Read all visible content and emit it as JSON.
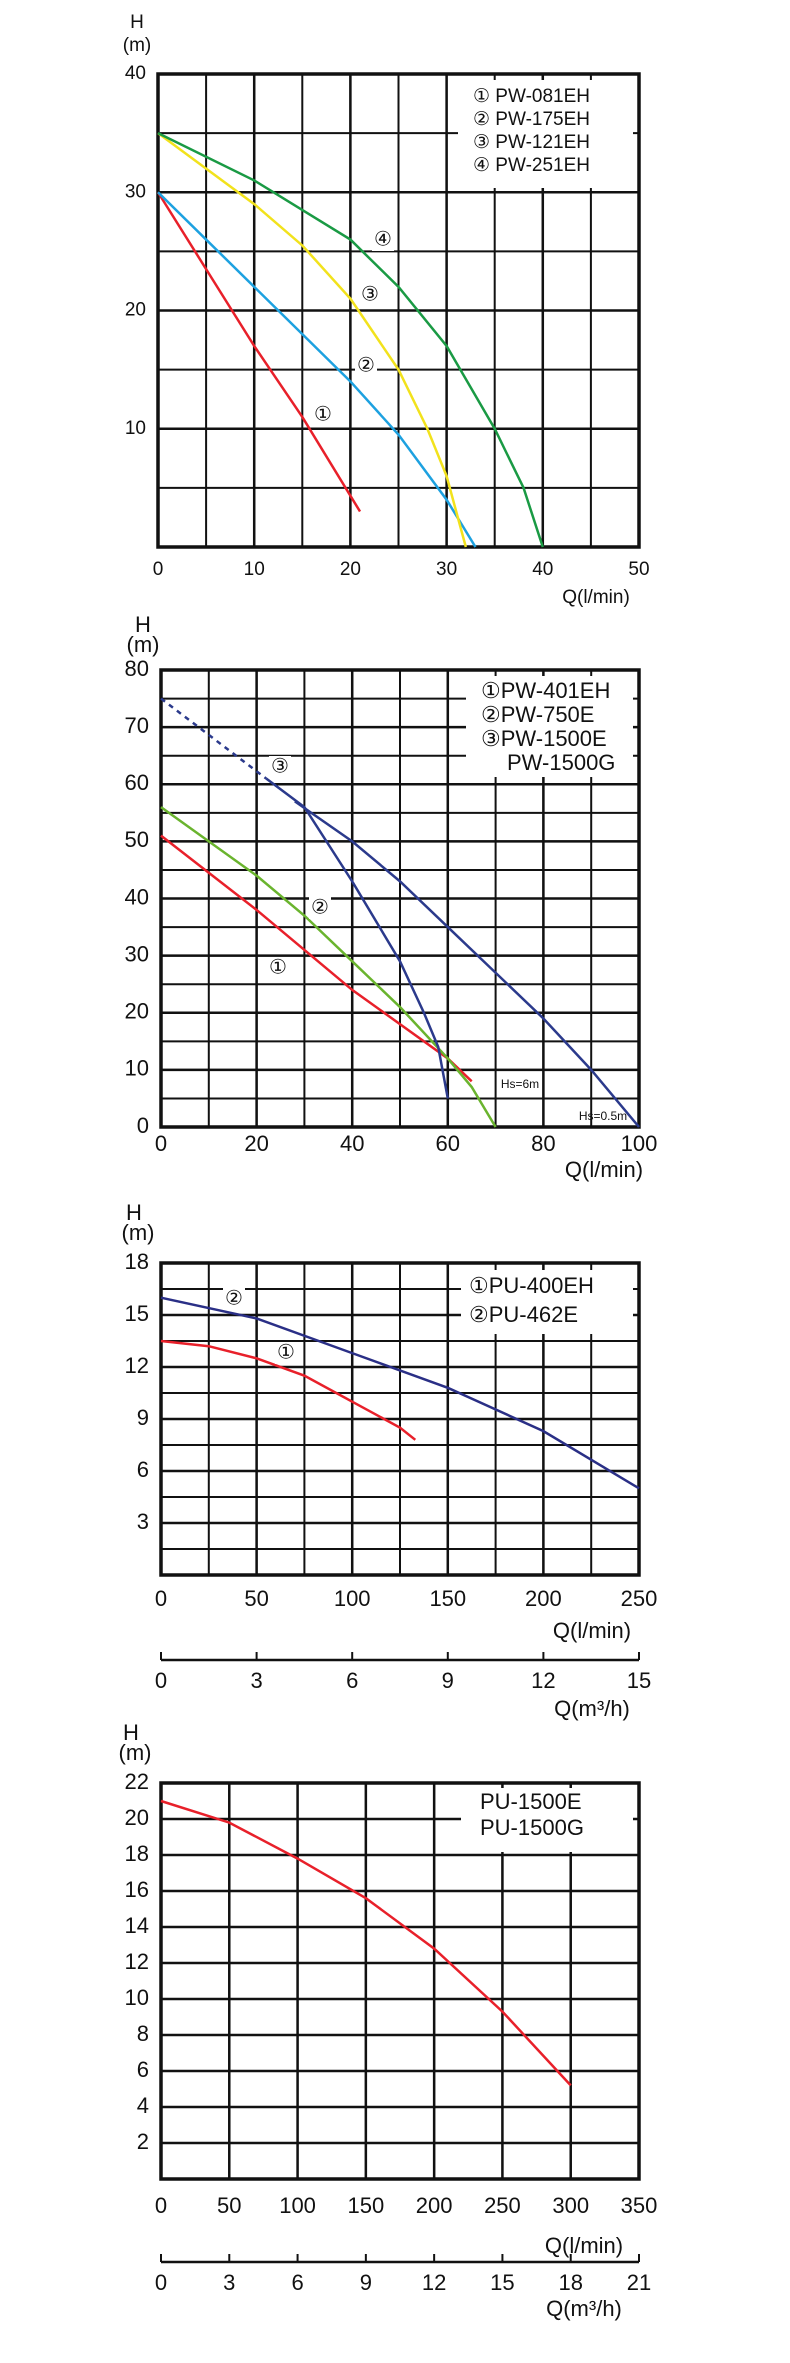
{
  "chart_data": [
    {
      "type": "line",
      "y_label": "H",
      "y_unit": "(m)",
      "x_label": "Q(l/min)",
      "xlim": [
        0,
        50
      ],
      "xticks": [
        0,
        10,
        20,
        30,
        40,
        50
      ],
      "ylim": [
        0,
        40
      ],
      "yticks": [
        10,
        20,
        30,
        40
      ],
      "grid": true,
      "legend": "upper right",
      "series": [
        {
          "name": "① PW-081EH",
          "color": "#e8202a",
          "x": [
            0,
            5,
            10,
            15,
            21
          ],
          "values": [
            30,
            23.5,
            17,
            11,
            3
          ]
        },
        {
          "name": "② PW-175EH",
          "color": "#1da1e0",
          "x": [
            0,
            5,
            10,
            15,
            20,
            25,
            30,
            33
          ],
          "values": [
            30,
            26,
            22,
            18,
            14,
            9.5,
            4,
            0
          ]
        },
        {
          "name": "③ PW-121EH",
          "color": "#f2e21c",
          "x": [
            0,
            5,
            10,
            15,
            20,
            25,
            28,
            30,
            32
          ],
          "values": [
            35,
            32,
            29,
            25.5,
            21,
            15,
            10,
            6,
            0
          ]
        },
        {
          "name": "④ PW-251EH",
          "color": "#1a9a44",
          "x": [
            0,
            10,
            20,
            25,
            30,
            35,
            38,
            40
          ],
          "values": [
            35,
            31,
            26,
            22,
            17,
            10,
            5,
            0
          ]
        }
      ],
      "annotations": [
        "①",
        "②",
        "③",
        "④"
      ]
    },
    {
      "type": "line",
      "y_label": "H",
      "y_unit": "(m)",
      "x_label": "Q(l/min)",
      "xlim": [
        0,
        100
      ],
      "xticks": [
        0,
        20,
        40,
        60,
        80,
        100
      ],
      "ylim": [
        0,
        80
      ],
      "yticks": [
        0,
        10,
        20,
        30,
        40,
        50,
        60,
        70,
        80
      ],
      "grid": true,
      "legend": "upper right",
      "series": [
        {
          "name": "①PW-401EH",
          "color": "#e8202a",
          "x": [
            0,
            20,
            40,
            60,
            65
          ],
          "values": [
            51,
            38,
            24,
            12,
            8
          ]
        },
        {
          "name": "②PW-750E",
          "color": "#6ab42e",
          "x": [
            0,
            20,
            30,
            40,
            50,
            60,
            65,
            70
          ],
          "values": [
            56,
            44,
            37,
            29,
            21,
            12,
            7,
            0
          ]
        },
        {
          "name": "③PW-1500E",
          "color": "#2b3a8c",
          "x": [
            22,
            30,
            40,
            50,
            55,
            58,
            60
          ],
          "values": [
            61,
            56,
            43,
            29,
            20,
            14,
            5
          ]
        },
        {
          "color": "#2b3a8c",
          "style": "dashed",
          "x": [
            0,
            22
          ],
          "values": [
            75,
            61
          ]
        },
        {
          "color": "#2b3a8c",
          "x": [
            28,
            40,
            50,
            60,
            70,
            80,
            90,
            100
          ],
          "values": [
            57,
            50,
            43,
            35,
            27,
            19,
            10,
            0
          ]
        }
      ],
      "legend_extra": "PW-1500G",
      "annotations": [
        "③",
        "②",
        "①",
        "Hs=6m",
        "Hs=0.5m"
      ]
    },
    {
      "type": "line",
      "y_label": "H",
      "y_unit": "(m)",
      "x_label": "Q(l/min)",
      "x2_label": "Q(m³/h)",
      "xlim": [
        0,
        250
      ],
      "xticks": [
        0,
        50,
        100,
        150,
        200,
        250
      ],
      "x2lim": [
        0,
        15
      ],
      "x2ticks": [
        0,
        3,
        6,
        9,
        12,
        15
      ],
      "ylim": [
        0,
        18
      ],
      "yticks": [
        3,
        6,
        9,
        12,
        15,
        18
      ],
      "grid": true,
      "legend": "upper right",
      "series": [
        {
          "name": "①PU-400EH",
          "color": "#e8202a",
          "x": [
            0,
            25,
            50,
            75,
            100,
            125,
            133
          ],
          "values": [
            13.5,
            13.2,
            12.5,
            11.5,
            10,
            8.5,
            7.8
          ]
        },
        {
          "name": "②PU-462E",
          "color": "#2a2f86",
          "x": [
            0,
            50,
            100,
            150,
            200,
            250
          ],
          "values": [
            16,
            14.8,
            12.8,
            10.8,
            8.3,
            5
          ]
        }
      ],
      "annotations": [
        "②",
        "①"
      ]
    },
    {
      "type": "line",
      "y_label": "H",
      "y_unit": "(m)",
      "x_label": "Q(l/min)",
      "x2_label": "Q(m³/h)",
      "xlim": [
        0,
        350
      ],
      "xticks": [
        0,
        50,
        100,
        150,
        200,
        250,
        300,
        350
      ],
      "x2lim": [
        0,
        21
      ],
      "x2ticks": [
        0,
        3,
        6,
        9,
        12,
        15,
        18,
        21
      ],
      "ylim": [
        0,
        22
      ],
      "yticks": [
        2,
        4,
        6,
        8,
        10,
        12,
        14,
        16,
        18,
        20,
        22
      ],
      "grid": true,
      "legend": "upper right",
      "series": [
        {
          "name": "PU-1500E",
          "color": "#e8202a",
          "x": [
            0,
            50,
            100,
            150,
            200,
            250,
            300
          ],
          "values": [
            21,
            19.8,
            17.8,
            15.6,
            12.8,
            9.3,
            5.2
          ]
        }
      ],
      "legend_extra": "PU-1500G"
    }
  ]
}
